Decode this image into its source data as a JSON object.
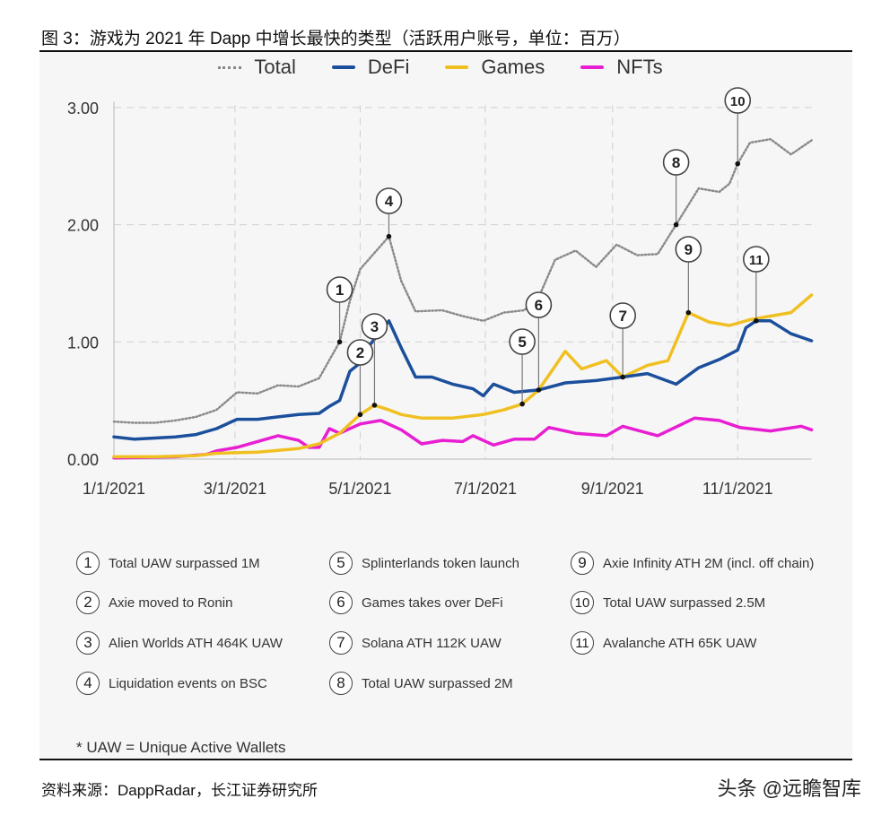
{
  "title": "图 3：游戏为 2021 年 Dapp 中增长最快的类型（活跃用户账号，单位：百万）",
  "source": "资料来源：DappRadar，长江证券研究所",
  "watermark": "头条 @远瞻智库",
  "footnote": "* UAW = Unique Active Wallets",
  "notes": [
    {
      "num": "1",
      "text": "Total UAW surpassed 1M"
    },
    {
      "num": "2",
      "text": "Axie moved to Ronin"
    },
    {
      "num": "3",
      "text": "Alien Worlds ATH 464K UAW"
    },
    {
      "num": "4",
      "text": "Liquidation events on BSC"
    },
    {
      "num": "5",
      "text": "Splinterlands token launch"
    },
    {
      "num": "6",
      "text": "Games takes over DeFi"
    },
    {
      "num": "7",
      "text": "Solana ATH 112K UAW"
    },
    {
      "num": "8",
      "text": "Total UAW surpassed 2M"
    },
    {
      "num": "9",
      "text": "Axie Infinity ATH 2M (incl. off chain)"
    },
    {
      "num": "10",
      "text": "Total UAW surpassed 2.5M"
    },
    {
      "num": "11",
      "text": "Avalanche ATH 65K UAW"
    }
  ],
  "chart_data": {
    "type": "line",
    "title": "",
    "xlabel": "",
    "ylabel": "",
    "xlim": [
      "2021-01-01",
      "2021-12-07"
    ],
    "ylim": [
      0,
      3
    ],
    "x_ticks": [
      {
        "date": "2021-01-01",
        "label": "1/1/2021"
      },
      {
        "date": "2021-03-01",
        "label": "3/1/2021"
      },
      {
        "date": "2021-05-01",
        "label": "5/1/2021"
      },
      {
        "date": "2021-07-01",
        "label": "7/1/2021"
      },
      {
        "date": "2021-09-01",
        "label": "9/1/2021"
      },
      {
        "date": "2021-11-01",
        "label": "11/1/2021"
      }
    ],
    "y_ticks": [
      {
        "value": 0,
        "label": "0.00"
      },
      {
        "value": 1,
        "label": "1.00"
      },
      {
        "value": 2,
        "label": "2.00"
      },
      {
        "value": 3,
        "label": "3.00"
      }
    ],
    "grid": true,
    "legend_position": "top-center",
    "series": [
      {
        "name": "Total",
        "color": "#8a8a8a",
        "style": "dotted",
        "points": [
          [
            "2021-01-01",
            0.32
          ],
          [
            "2021-01-11",
            0.31
          ],
          [
            "2021-01-21",
            0.31
          ],
          [
            "2021-01-31",
            0.33
          ],
          [
            "2021-02-10",
            0.36
          ],
          [
            "2021-02-20",
            0.42
          ],
          [
            "2021-03-02",
            0.57
          ],
          [
            "2021-03-12",
            0.56
          ],
          [
            "2021-03-22",
            0.63
          ],
          [
            "2021-04-01",
            0.62
          ],
          [
            "2021-04-11",
            0.69
          ],
          [
            "2021-04-21",
            1.0
          ],
          [
            "2021-04-26",
            1.35
          ],
          [
            "2021-05-01",
            1.62
          ],
          [
            "2021-05-06",
            1.72
          ],
          [
            "2021-05-15",
            1.9
          ],
          [
            "2021-05-21",
            1.52
          ],
          [
            "2021-05-28",
            1.26
          ],
          [
            "2021-06-10",
            1.27
          ],
          [
            "2021-06-20",
            1.22
          ],
          [
            "2021-06-30",
            1.18
          ],
          [
            "2021-07-10",
            1.25
          ],
          [
            "2021-07-20",
            1.27
          ],
          [
            "2021-07-27",
            1.38
          ],
          [
            "2021-08-04",
            1.7
          ],
          [
            "2021-08-14",
            1.78
          ],
          [
            "2021-08-24",
            1.64
          ],
          [
            "2021-09-03",
            1.83
          ],
          [
            "2021-09-13",
            1.74
          ],
          [
            "2021-09-23",
            1.75
          ],
          [
            "2021-10-02",
            2.0
          ],
          [
            "2021-10-13",
            2.31
          ],
          [
            "2021-10-23",
            2.28
          ],
          [
            "2021-10-28",
            2.35
          ],
          [
            "2021-11-01",
            2.52
          ],
          [
            "2021-11-07",
            2.7
          ],
          [
            "2021-11-17",
            2.73
          ],
          [
            "2021-11-27",
            2.6
          ],
          [
            "2021-12-07",
            2.72
          ]
        ]
      },
      {
        "name": "DeFi",
        "color": "#1b4f9c",
        "style": "solid",
        "points": [
          [
            "2021-01-01",
            0.19
          ],
          [
            "2021-01-11",
            0.17
          ],
          [
            "2021-01-21",
            0.18
          ],
          [
            "2021-01-31",
            0.19
          ],
          [
            "2021-02-10",
            0.21
          ],
          [
            "2021-02-20",
            0.26
          ],
          [
            "2021-03-02",
            0.34
          ],
          [
            "2021-03-12",
            0.34
          ],
          [
            "2021-03-22",
            0.36
          ],
          [
            "2021-04-01",
            0.38
          ],
          [
            "2021-04-11",
            0.39
          ],
          [
            "2021-04-16",
            0.45
          ],
          [
            "2021-04-21",
            0.5
          ],
          [
            "2021-04-26",
            0.75
          ],
          [
            "2021-05-01",
            0.82
          ],
          [
            "2021-05-06",
            0.98
          ],
          [
            "2021-05-15",
            1.18
          ],
          [
            "2021-05-21",
            0.95
          ],
          [
            "2021-05-28",
            0.7
          ],
          [
            "2021-06-05",
            0.7
          ],
          [
            "2021-06-15",
            0.64
          ],
          [
            "2021-06-25",
            0.6
          ],
          [
            "2021-06-30",
            0.54
          ],
          [
            "2021-07-05",
            0.64
          ],
          [
            "2021-07-15",
            0.57
          ],
          [
            "2021-07-27",
            0.59
          ],
          [
            "2021-08-09",
            0.65
          ],
          [
            "2021-08-24",
            0.67
          ],
          [
            "2021-09-06",
            0.7
          ],
          [
            "2021-09-18",
            0.73
          ],
          [
            "2021-10-02",
            0.64
          ],
          [
            "2021-10-13",
            0.78
          ],
          [
            "2021-10-23",
            0.85
          ],
          [
            "2021-11-01",
            0.93
          ],
          [
            "2021-11-05",
            1.12
          ],
          [
            "2021-11-10",
            1.18
          ],
          [
            "2021-11-17",
            1.18
          ],
          [
            "2021-11-27",
            1.07
          ],
          [
            "2021-12-07",
            1.01
          ]
        ]
      },
      {
        "name": "Games",
        "color": "#f0c022",
        "style": "solid",
        "points": [
          [
            "2021-01-01",
            0.02
          ],
          [
            "2021-01-21",
            0.02
          ],
          [
            "2021-02-10",
            0.03
          ],
          [
            "2021-02-20",
            0.05
          ],
          [
            "2021-03-12",
            0.06
          ],
          [
            "2021-04-01",
            0.09
          ],
          [
            "2021-04-11",
            0.13
          ],
          [
            "2021-04-21",
            0.22
          ],
          [
            "2021-05-01",
            0.38
          ],
          [
            "2021-05-08",
            0.46
          ],
          [
            "2021-05-15",
            0.42
          ],
          [
            "2021-05-21",
            0.38
          ],
          [
            "2021-05-31",
            0.35
          ],
          [
            "2021-06-15",
            0.35
          ],
          [
            "2021-06-30",
            0.38
          ],
          [
            "2021-07-10",
            0.42
          ],
          [
            "2021-07-19",
            0.47
          ],
          [
            "2021-07-27",
            0.59
          ],
          [
            "2021-08-09",
            0.92
          ],
          [
            "2021-08-17",
            0.77
          ],
          [
            "2021-08-29",
            0.84
          ],
          [
            "2021-09-06",
            0.7
          ],
          [
            "2021-09-18",
            0.8
          ],
          [
            "2021-09-28",
            0.84
          ],
          [
            "2021-10-08",
            1.25
          ],
          [
            "2021-10-18",
            1.17
          ],
          [
            "2021-10-28",
            1.14
          ],
          [
            "2021-11-07",
            1.19
          ],
          [
            "2021-11-17",
            1.22
          ],
          [
            "2021-11-27",
            1.25
          ],
          [
            "2021-12-07",
            1.4
          ]
        ]
      },
      {
        "name": "NFTs",
        "color": "#e81ed2",
        "style": "solid",
        "points": [
          [
            "2021-01-01",
            0.01
          ],
          [
            "2021-01-31",
            0.02
          ],
          [
            "2021-02-15",
            0.04
          ],
          [
            "2021-02-20",
            0.07
          ],
          [
            "2021-03-02",
            0.1
          ],
          [
            "2021-03-12",
            0.15
          ],
          [
            "2021-03-22",
            0.2
          ],
          [
            "2021-04-01",
            0.16
          ],
          [
            "2021-04-06",
            0.1
          ],
          [
            "2021-04-11",
            0.1
          ],
          [
            "2021-04-16",
            0.26
          ],
          [
            "2021-04-21",
            0.22
          ],
          [
            "2021-05-01",
            0.3
          ],
          [
            "2021-05-11",
            0.33
          ],
          [
            "2021-05-21",
            0.25
          ],
          [
            "2021-05-31",
            0.13
          ],
          [
            "2021-06-10",
            0.16
          ],
          [
            "2021-06-20",
            0.15
          ],
          [
            "2021-06-25",
            0.2
          ],
          [
            "2021-07-05",
            0.12
          ],
          [
            "2021-07-15",
            0.17
          ],
          [
            "2021-07-25",
            0.17
          ],
          [
            "2021-08-01",
            0.27
          ],
          [
            "2021-08-14",
            0.22
          ],
          [
            "2021-08-29",
            0.2
          ],
          [
            "2021-09-06",
            0.28
          ],
          [
            "2021-09-23",
            0.2
          ],
          [
            "2021-10-11",
            0.35
          ],
          [
            "2021-10-23",
            0.33
          ],
          [
            "2021-11-02",
            0.27
          ],
          [
            "2021-11-17",
            0.24
          ],
          [
            "2021-12-02",
            0.28
          ],
          [
            "2021-12-07",
            0.25
          ]
        ]
      }
    ],
    "annotations": [
      {
        "num": "1",
        "date": "2021-04-21",
        "value": 1.0
      },
      {
        "num": "2",
        "date": "2021-05-01",
        "value": 0.38
      },
      {
        "num": "3",
        "date": "2021-05-08",
        "value": 0.46
      },
      {
        "num": "4",
        "date": "2021-05-15",
        "value": 1.9
      },
      {
        "num": "5",
        "date": "2021-07-19",
        "value": 0.47
      },
      {
        "num": "6",
        "date": "2021-07-27",
        "value": 0.59
      },
      {
        "num": "7",
        "date": "2021-09-06",
        "value": 0.7
      },
      {
        "num": "8",
        "date": "2021-10-02",
        "value": 2.0
      },
      {
        "num": "9",
        "date": "2021-10-08",
        "value": 1.25
      },
      {
        "num": "10",
        "date": "2021-11-01",
        "value": 2.52
      },
      {
        "num": "11",
        "date": "2021-11-10",
        "value": 1.18
      }
    ]
  }
}
